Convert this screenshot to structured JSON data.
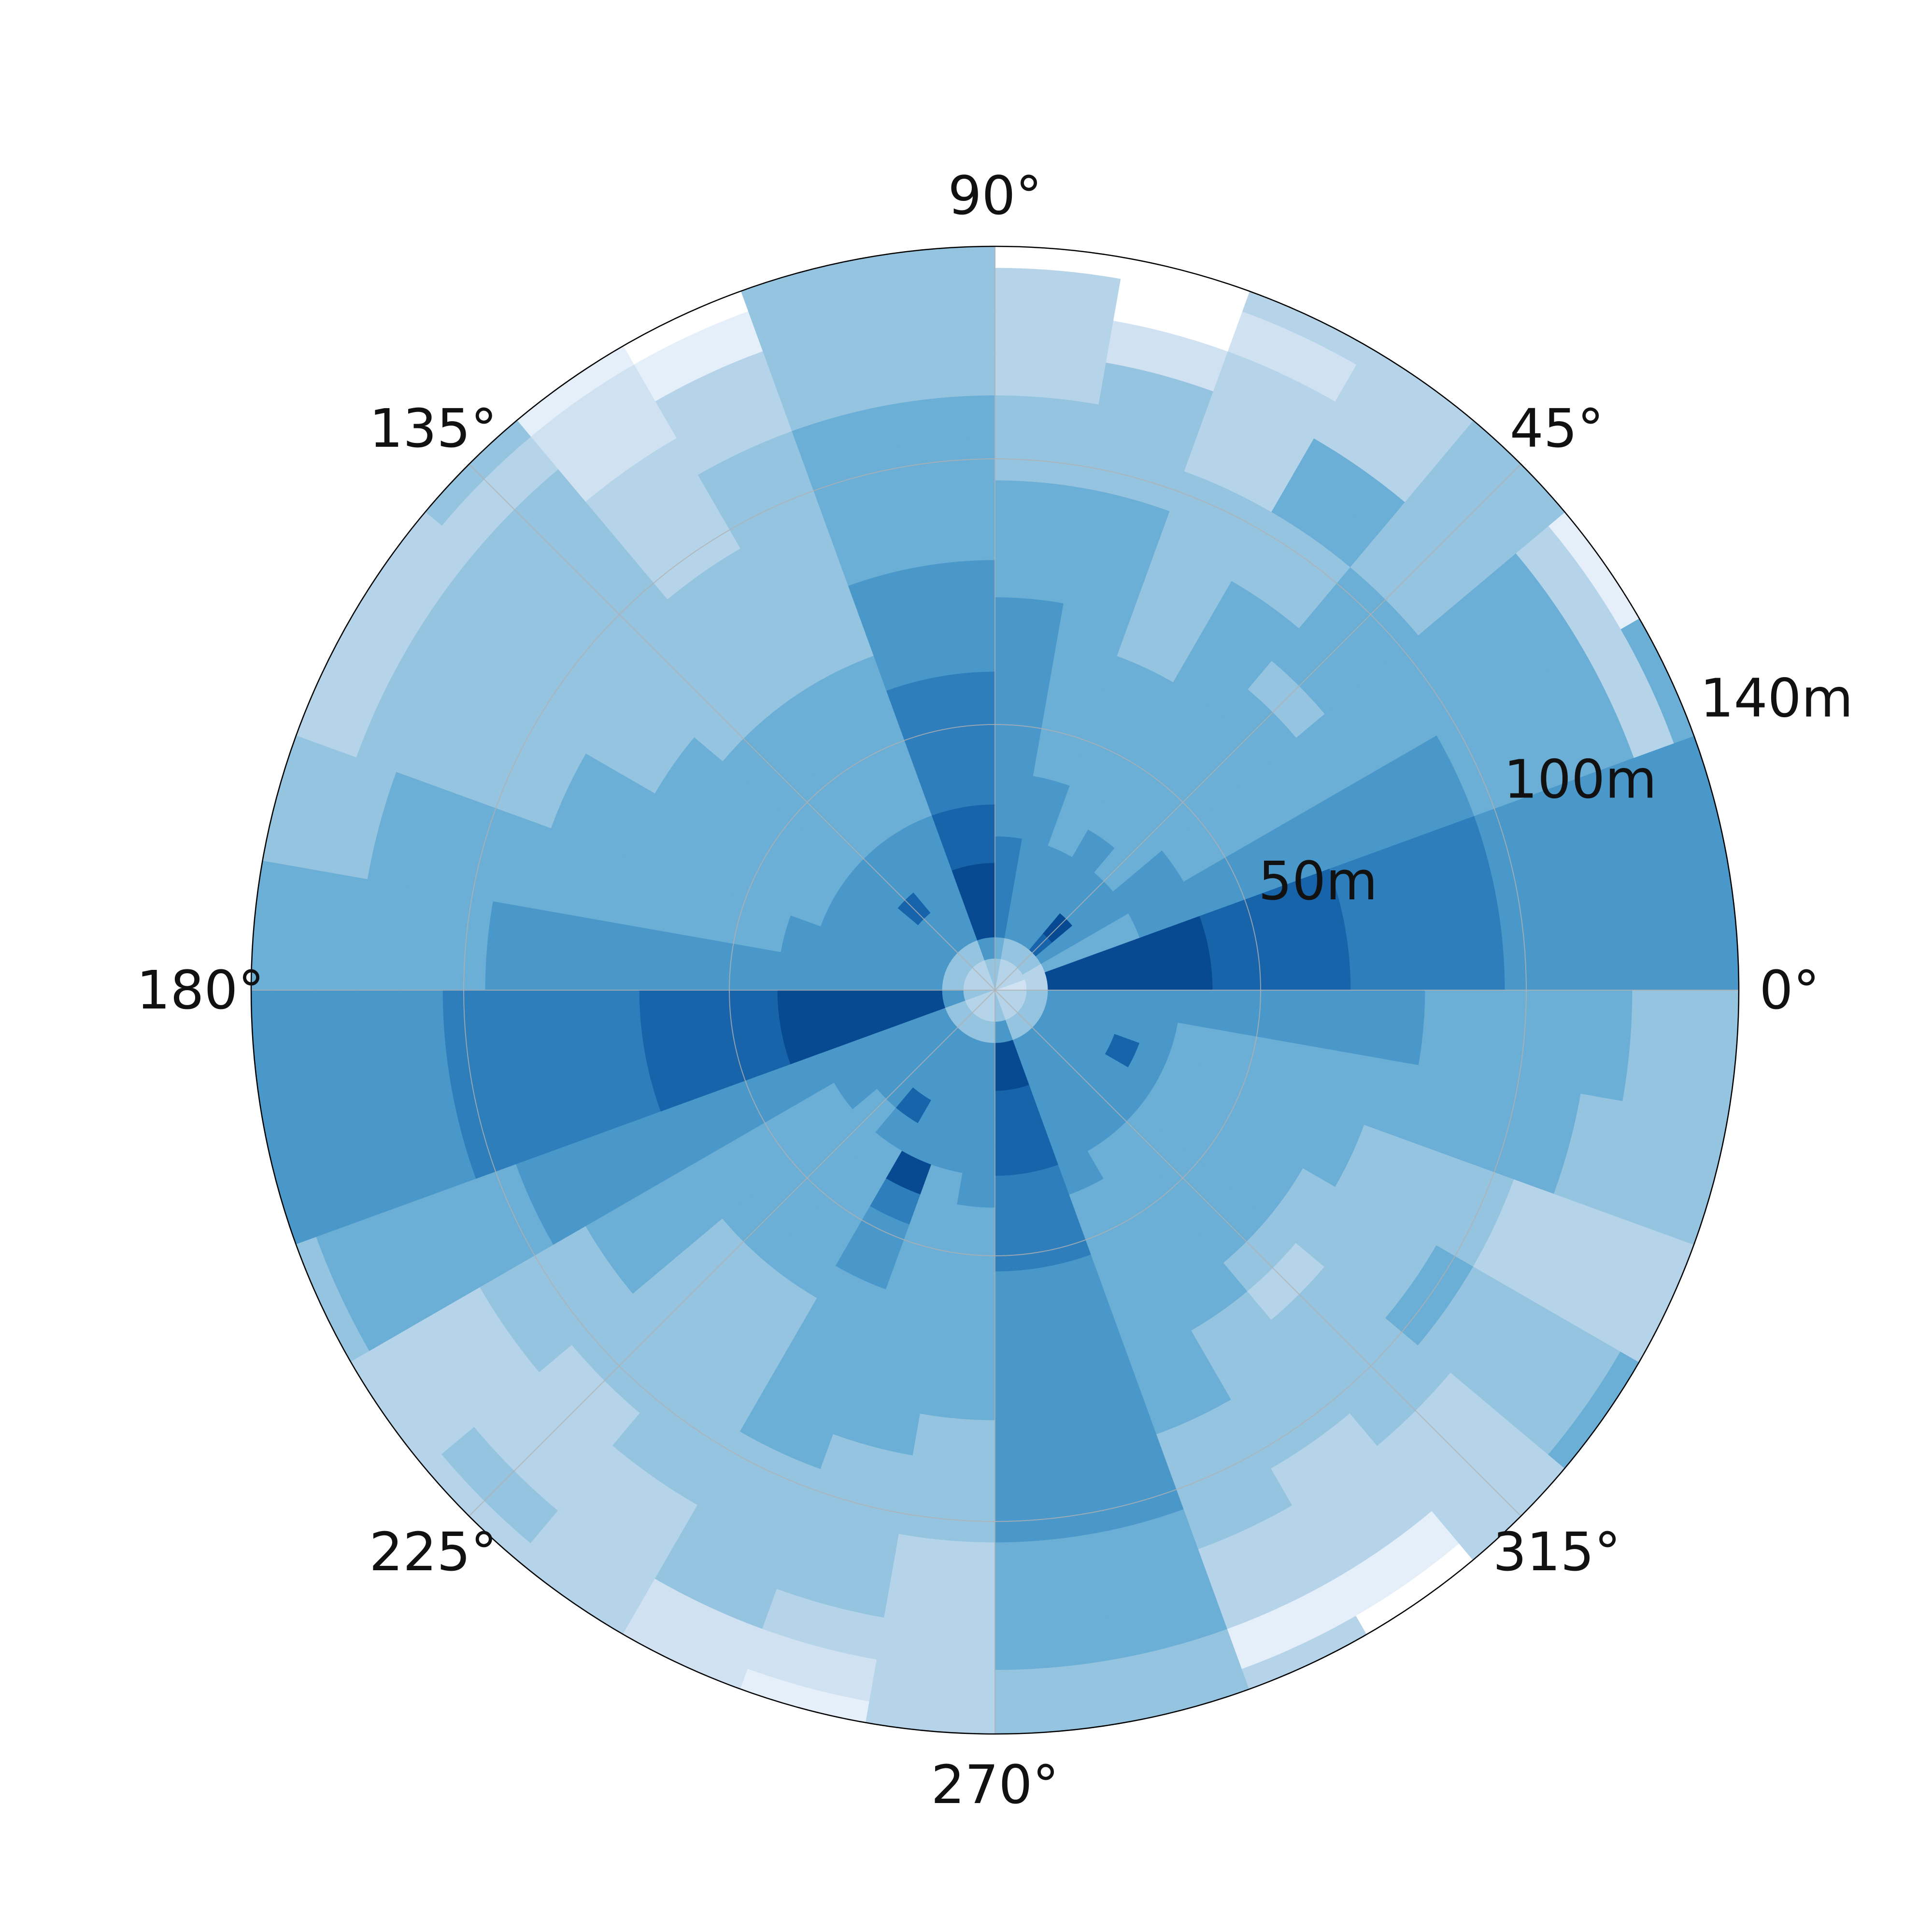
{
  "chart_data": {
    "type": "heatmap",
    "projection": "polar",
    "theta_tick_labels": [
      "0°",
      "45°",
      "90°",
      "135°",
      "180°",
      "225°",
      "270°",
      "315°"
    ],
    "theta_ticks_deg": [
      0,
      45,
      90,
      135,
      180,
      225,
      270,
      315
    ],
    "r_tick_labels": [
      "50m",
      "100m",
      "140m"
    ],
    "r_ticks": [
      50,
      100,
      140
    ],
    "r_range": [
      0,
      140
    ],
    "r_edges": [
      0,
      3,
      6,
      10,
      14,
      19,
      24,
      29,
      35,
      41,
      47,
      53,
      60,
      67,
      74,
      81,
      89,
      96,
      104,
      112,
      120,
      128,
      136,
      140
    ],
    "theta_bin_width_deg": 10,
    "theta_start_deg": 0,
    "value_range": [
      0,
      10
    ],
    "grid": true,
    "colormap": "Blues",
    "colors": {
      "low": "#ffffff",
      "high": "#08306b",
      "grid": "#b0b0b0",
      "spine": "#000000"
    },
    "z": [
      [
        2,
        2,
        3,
        9,
        9,
        9,
        9,
        9,
        9,
        8,
        8,
        8,
        8,
        7,
        7,
        7,
        7,
        6,
        6,
        6,
        6,
        6,
        6
      ],
      [
        2,
        2,
        3,
        9,
        9,
        9,
        9,
        9,
        9,
        8,
        8,
        8,
        8,
        7,
        7,
        7,
        7,
        6,
        6,
        6,
        6,
        6,
        6
      ],
      [
        3,
        3,
        3,
        5,
        5,
        5,
        5,
        6,
        6,
        6,
        6,
        6,
        6,
        6,
        6,
        6,
        6,
        5,
        5,
        5,
        5,
        3,
        5
      ],
      [
        3,
        3,
        4,
        6,
        6,
        6,
        6,
        6,
        6,
        5,
        5,
        5,
        5,
        5,
        5,
        5,
        5,
        5,
        5,
        5,
        5,
        3,
        1
      ],
      [
        3,
        3,
        4,
        8,
        9,
        6,
        6,
        5,
        5,
        5,
        5,
        5,
        5,
        5,
        4,
        5,
        5,
        5,
        4,
        4,
        4,
        4,
        4
      ],
      [
        3,
        3,
        4,
        6,
        6,
        6,
        6,
        6,
        5,
        5,
        5,
        5,
        5,
        5,
        5,
        5,
        4,
        4,
        5,
        5,
        3,
        3,
        3
      ],
      [
        3,
        3,
        4,
        6,
        6,
        6,
        6,
        5,
        5,
        5,
        5,
        5,
        5,
        4,
        4,
        4,
        4,
        4,
        3,
        3,
        3,
        2,
        3
      ],
      [
        3,
        3,
        4,
        6,
        6,
        6,
        6,
        6,
        6,
        5,
        5,
        5,
        5,
        5,
        5,
        5,
        5,
        4,
        4,
        4,
        2,
        0,
        0
      ],
      [
        4,
        4,
        5,
        7,
        7,
        7,
        7,
        6,
        6,
        6,
        6,
        6,
        6,
        6,
        5,
        5,
        5,
        4,
        4,
        3,
        3,
        3,
        0
      ],
      [
        4,
        4,
        6,
        9,
        9,
        9,
        8,
        8,
        7,
        7,
        7,
        7,
        6,
        6,
        6,
        5,
        5,
        5,
        5,
        4,
        4,
        4,
        4
      ],
      [
        4,
        4,
        6,
        9,
        9,
        9,
        8,
        8,
        7,
        7,
        7,
        7,
        6,
        6,
        6,
        5,
        5,
        5,
        5,
        4,
        4,
        4,
        4
      ],
      [
        3,
        3,
        4,
        6,
        6,
        6,
        6,
        6,
        5,
        5,
        5,
        5,
        5,
        4,
        4,
        4,
        4,
        4,
        4,
        3,
        3,
        1,
        0
      ],
      [
        3,
        3,
        4,
        6,
        6,
        6,
        6,
        6,
        5,
        5,
        5,
        5,
        5,
        4,
        4,
        4,
        4,
        3,
        3,
        3,
        2,
        2,
        1
      ],
      [
        3,
        3,
        4,
        6,
        6,
        8,
        6,
        6,
        5,
        5,
        5,
        5,
        5,
        4,
        4,
        4,
        4,
        4,
        4,
        4,
        4,
        3,
        4
      ],
      [
        3,
        3,
        4,
        6,
        6,
        6,
        6,
        6,
        5,
        5,
        5,
        5,
        5,
        5,
        4,
        4,
        4,
        4,
        4,
        4,
        4,
        3,
        3
      ],
      [
        3,
        3,
        4,
        6,
        6,
        6,
        6,
        6,
        5,
        5,
        5,
        5,
        5,
        5,
        5,
        5,
        4,
        4,
        4,
        4,
        4,
        3,
        3
      ],
      [
        3,
        3,
        4,
        6,
        6,
        6,
        6,
        6,
        6,
        5,
        5,
        5,
        5,
        5,
        5,
        5,
        5,
        5,
        5,
        5,
        4,
        4,
        4
      ],
      [
        3,
        3,
        4,
        6,
        6,
        6,
        6,
        6,
        6,
        6,
        6,
        6,
        6,
        6,
        6,
        6,
        6,
        5,
        5,
        5,
        5,
        5,
        5
      ],
      [
        4,
        4,
        6,
        9,
        9,
        9,
        9,
        9,
        9,
        8,
        8,
        8,
        8,
        7,
        7,
        7,
        7,
        7,
        6,
        6,
        6,
        6,
        6
      ],
      [
        4,
        4,
        6,
        9,
        9,
        9,
        9,
        9,
        9,
        8,
        8,
        8,
        8,
        7,
        7,
        7,
        7,
        7,
        6,
        6,
        6,
        6,
        6
      ],
      [
        3,
        3,
        4,
        6,
        6,
        6,
        6,
        6,
        6,
        6,
        6,
        6,
        6,
        6,
        6,
        6,
        6,
        5,
        5,
        5,
        5,
        5,
        4
      ],
      [
        3,
        3,
        4,
        6,
        6,
        6,
        6,
        6,
        5,
        5,
        5,
        5,
        5,
        5,
        5,
        5,
        4,
        4,
        4,
        3,
        3,
        3,
        3
      ],
      [
        3,
        3,
        4,
        6,
        6,
        6,
        6,
        5,
        5,
        5,
        5,
        5,
        5,
        4,
        4,
        4,
        4,
        4,
        3,
        3,
        3,
        4,
        3
      ],
      [
        3,
        3,
        4,
        6,
        6,
        6,
        8,
        6,
        5,
        5,
        5,
        5,
        5,
        4,
        4,
        4,
        4,
        4,
        4,
        3,
        3,
        3,
        3
      ],
      [
        3,
        3,
        4,
        6,
        6,
        6,
        6,
        6,
        9,
        7,
        6,
        6,
        5,
        5,
        5,
        5,
        5,
        4,
        4,
        4,
        4,
        2,
        2
      ],
      [
        3,
        3,
        4,
        6,
        6,
        6,
        6,
        6,
        5,
        5,
        5,
        5,
        5,
        5,
        5,
        5,
        4,
        4,
        4,
        4,
        3,
        2,
        1
      ],
      [
        3,
        3,
        4,
        6,
        6,
        6,
        6,
        6,
        6,
        5,
        5,
        5,
        5,
        5,
        5,
        4,
        4,
        4,
        3,
        3,
        3,
        3,
        3
      ],
      [
        4,
        4,
        6,
        9,
        9,
        8,
        8,
        8,
        7,
        7,
        7,
        6,
        6,
        6,
        6,
        6,
        6,
        6,
        5,
        5,
        5,
        4,
        4
      ],
      [
        4,
        4,
        6,
        9,
        9,
        8,
        8,
        8,
        7,
        7,
        7,
        6,
        6,
        6,
        6,
        6,
        6,
        6,
        5,
        5,
        5,
        4,
        4
      ],
      [
        3,
        3,
        4,
        6,
        6,
        6,
        6,
        6,
        6,
        5,
        5,
        5,
        5,
        5,
        5,
        5,
        4,
        4,
        4,
        3,
        3,
        1,
        3
      ],
      [
        3,
        3,
        4,
        6,
        6,
        6,
        6,
        6,
        5,
        5,
        5,
        5,
        5,
        5,
        4,
        4,
        4,
        4,
        3,
        3,
        3,
        1,
        0
      ],
      [
        3,
        3,
        4,
        6,
        6,
        6,
        6,
        6,
        5,
        5,
        5,
        5,
        5,
        4,
        3,
        4,
        4,
        4,
        4,
        3,
        3,
        3,
        3
      ],
      [
        3,
        3,
        4,
        6,
        6,
        6,
        6,
        6,
        5,
        5,
        5,
        5,
        5,
        4,
        4,
        4,
        4,
        5,
        4,
        4,
        4,
        4,
        5
      ],
      [
        3,
        3,
        4,
        6,
        6,
        6,
        8,
        6,
        5,
        5,
        5,
        5,
        5,
        5,
        4,
        4,
        4,
        4,
        3,
        3,
        3,
        3,
        3
      ],
      [
        3,
        3,
        4,
        6,
        6,
        6,
        6,
        6,
        5,
        5,
        5,
        5,
        5,
        5,
        5,
        5,
        5,
        5,
        5,
        4,
        4,
        4,
        4
      ],
      [
        3,
        3,
        4,
        6,
        6,
        6,
        6,
        6,
        6,
        6,
        6,
        6,
        6,
        6,
        6,
        5,
        5,
        5,
        5,
        5,
        4,
        4,
        4
      ]
    ]
  }
}
